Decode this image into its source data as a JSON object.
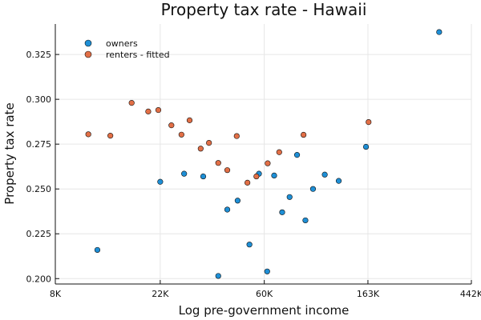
{
  "chart_data": {
    "type": "scatter",
    "title": "Property tax rate - Hawaii",
    "xlabel": "Log pre-government income",
    "ylabel": "Property tax rate",
    "xscale": "log",
    "xlim": [
      8000,
      442000
    ],
    "ylim": [
      0.197,
      0.342
    ],
    "x_ticks": [
      {
        "value": 8000,
        "label": "8K"
      },
      {
        "value": 22000,
        "label": "22K"
      },
      {
        "value": 60000,
        "label": "60K"
      },
      {
        "value": 163000,
        "label": "163K"
      },
      {
        "value": 442000,
        "label": "442K"
      }
    ],
    "y_ticks": [
      {
        "value": 0.2,
        "label": "0.200"
      },
      {
        "value": 0.225,
        "label": "0.225"
      },
      {
        "value": 0.25,
        "label": "0.250"
      },
      {
        "value": 0.275,
        "label": "0.275"
      },
      {
        "value": 0.3,
        "label": "0.300"
      },
      {
        "value": 0.325,
        "label": "0.325"
      }
    ],
    "grid": true,
    "legend_position": "top-left",
    "series": [
      {
        "name": "owners",
        "color": "#1e8fd6",
        "points": [
          {
            "x": 12000,
            "y": 0.216
          },
          {
            "x": 22000,
            "y": 0.254
          },
          {
            "x": 27700,
            "y": 0.2585
          },
          {
            "x": 33300,
            "y": 0.257
          },
          {
            "x": 38500,
            "y": 0.2015
          },
          {
            "x": 42000,
            "y": 0.2385
          },
          {
            "x": 46400,
            "y": 0.2435
          },
          {
            "x": 52000,
            "y": 0.219
          },
          {
            "x": 57000,
            "y": 0.2585
          },
          {
            "x": 61700,
            "y": 0.204
          },
          {
            "x": 66000,
            "y": 0.2575
          },
          {
            "x": 71300,
            "y": 0.237
          },
          {
            "x": 76600,
            "y": 0.2455
          },
          {
            "x": 82300,
            "y": 0.269
          },
          {
            "x": 89200,
            "y": 0.2325
          },
          {
            "x": 96000,
            "y": 0.25
          },
          {
            "x": 107500,
            "y": 0.258
          },
          {
            "x": 123000,
            "y": 0.2545
          },
          {
            "x": 160000,
            "y": 0.2735
          },
          {
            "x": 324000,
            "y": 0.3375
          }
        ]
      },
      {
        "name": "renters - fitted",
        "color": "#e26f46",
        "points": [
          {
            "x": 11000,
            "y": 0.2805
          },
          {
            "x": 13600,
            "y": 0.2797
          },
          {
            "x": 16700,
            "y": 0.298
          },
          {
            "x": 19600,
            "y": 0.2932
          },
          {
            "x": 21600,
            "y": 0.294
          },
          {
            "x": 24500,
            "y": 0.2855
          },
          {
            "x": 27000,
            "y": 0.2803
          },
          {
            "x": 29200,
            "y": 0.2883
          },
          {
            "x": 32500,
            "y": 0.2725
          },
          {
            "x": 35200,
            "y": 0.2757
          },
          {
            "x": 38500,
            "y": 0.2645
          },
          {
            "x": 42000,
            "y": 0.2605
          },
          {
            "x": 46000,
            "y": 0.2795
          },
          {
            "x": 51000,
            "y": 0.2535
          },
          {
            "x": 55600,
            "y": 0.257
          },
          {
            "x": 62000,
            "y": 0.2643
          },
          {
            "x": 69300,
            "y": 0.2705
          },
          {
            "x": 87600,
            "y": 0.2802
          },
          {
            "x": 164000,
            "y": 0.2873
          }
        ]
      }
    ]
  }
}
